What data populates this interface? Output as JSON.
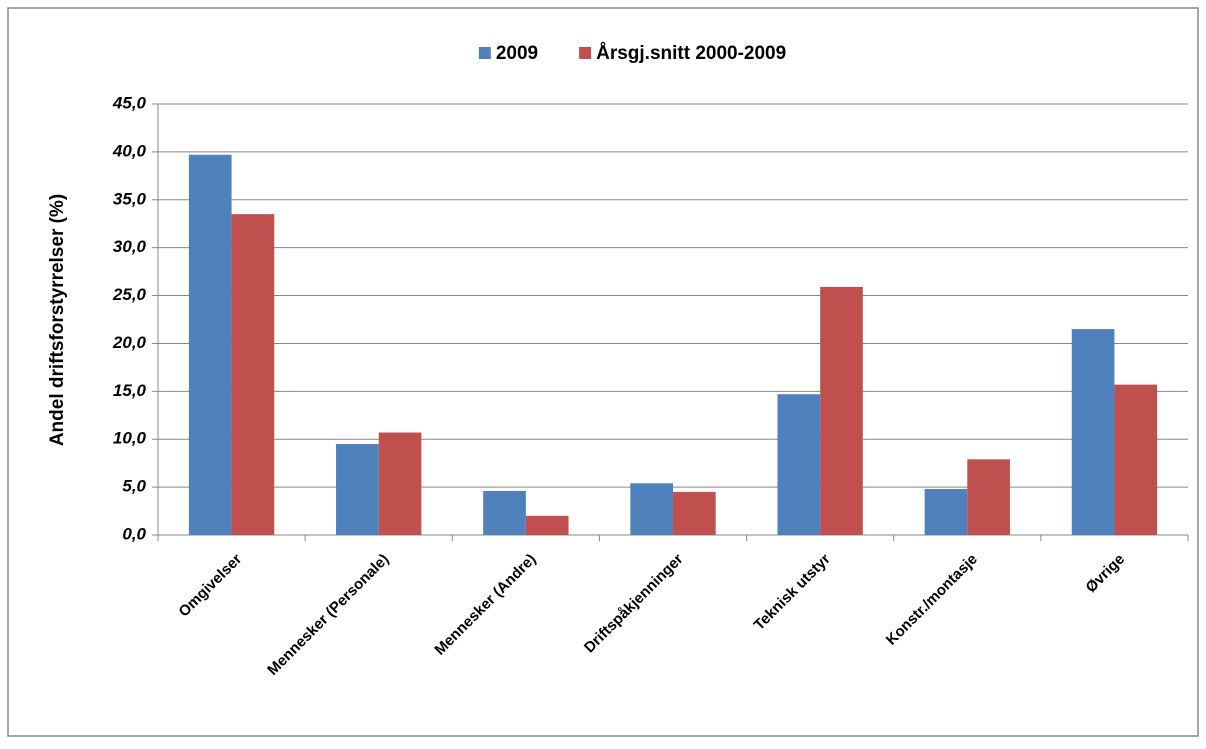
{
  "chart_data": {
    "type": "bar",
    "y_label": "Andel driftsforstyrrelser (%)",
    "categories": [
      "Omgivelser",
      "Mennesker (Personale)",
      "Mennesker (Andre)",
      "Driftspåkjenninger",
      "Teknisk utstyr",
      "Konstr./montasje",
      "Øvrige"
    ],
    "series": [
      {
        "name": "2009",
        "color": "#4f81bd",
        "values": [
          39.7,
          9.5,
          4.6,
          5.4,
          14.7,
          4.8,
          21.5
        ]
      },
      {
        "name": "Årsgj.snitt 2000-2009",
        "color": "#c0504d",
        "values": [
          33.5,
          10.7,
          2.0,
          4.5,
          25.9,
          7.9,
          15.7
        ]
      }
    ],
    "ylim": [
      0,
      45
    ],
    "yticks": [
      {
        "value": 0,
        "label": "0,0"
      },
      {
        "value": 5,
        "label": "5,0"
      },
      {
        "value": 10,
        "label": "10,0"
      },
      {
        "value": 15,
        "label": "15,0"
      },
      {
        "value": 20,
        "label": "20,0"
      },
      {
        "value": 25,
        "label": "25,0"
      },
      {
        "value": 30,
        "label": "30,0"
      },
      {
        "value": 35,
        "label": "35,0"
      },
      {
        "value": 40,
        "label": "40,0"
      },
      {
        "value": 45,
        "label": "45,0"
      }
    ],
    "grid": true,
    "legend": "top"
  }
}
